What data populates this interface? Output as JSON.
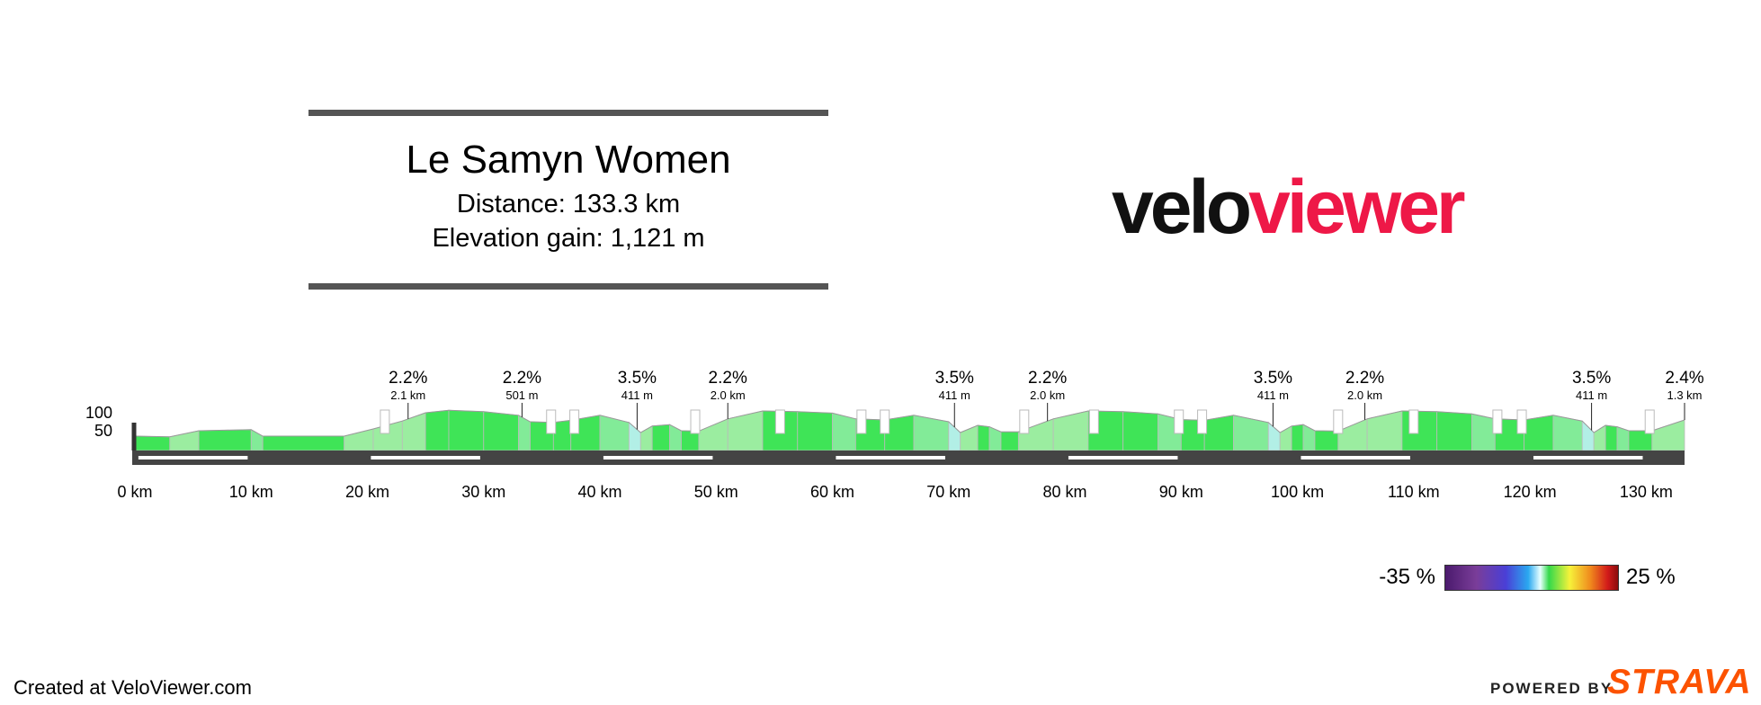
{
  "header": {
    "title": "Le Samyn Women",
    "distance": "Distance: 133.3 km",
    "elevation": "Elevation gain: 1,121 m"
  },
  "logo": {
    "part1": "velo",
    "part2": "viewer"
  },
  "colors": {
    "velo": "#111111",
    "viewer": "#ee1847",
    "strava": "#fc5200",
    "rule": "#555555",
    "road": "#444444"
  },
  "chart_data": {
    "type": "area",
    "x_unit": "km",
    "xlim": [
      0,
      133.3
    ],
    "x_ticks": [
      "0 km",
      "10 km",
      "20 km",
      "30 km",
      "40 km",
      "50 km",
      "60 km",
      "70 km",
      "80 km",
      "90 km",
      "100 km",
      "110 km",
      "120 km",
      "130 km"
    ],
    "y_ticks": [
      100,
      50
    ],
    "ylim": [
      0,
      140
    ],
    "profile": [
      {
        "km": 0,
        "ele": 40
      },
      {
        "km": 3,
        "ele": 38
      },
      {
        "km": 5.5,
        "ele": 55
      },
      {
        "km": 10,
        "ele": 58
      },
      {
        "km": 11,
        "ele": 40
      },
      {
        "km": 18,
        "ele": 40
      },
      {
        "km": 20.5,
        "ele": 60
      },
      {
        "km": 23,
        "ele": 82
      },
      {
        "km": 25,
        "ele": 105
      },
      {
        "km": 27,
        "ele": 112
      },
      {
        "km": 30,
        "ele": 108
      },
      {
        "km": 33,
        "ele": 98
      },
      {
        "km": 34,
        "ele": 80
      },
      {
        "km": 36,
        "ele": 78
      },
      {
        "km": 37.5,
        "ele": 84
      },
      {
        "km": 40,
        "ele": 98
      },
      {
        "km": 42.5,
        "ele": 78
      },
      {
        "km": 43.5,
        "ele": 50
      },
      {
        "km": 44.5,
        "ele": 68
      },
      {
        "km": 46,
        "ele": 72
      },
      {
        "km": 47,
        "ele": 55
      },
      {
        "km": 48.5,
        "ele": 54
      },
      {
        "km": 51,
        "ele": 88
      },
      {
        "km": 54,
        "ele": 110
      },
      {
        "km": 57,
        "ele": 108
      },
      {
        "km": 60,
        "ele": 104
      },
      {
        "km": 62,
        "ele": 88
      },
      {
        "km": 64.5,
        "ele": 85
      },
      {
        "km": 67,
        "ele": 98
      },
      {
        "km": 70,
        "ele": 80
      },
      {
        "km": 71,
        "ele": 50
      },
      {
        "km": 72.5,
        "ele": 70
      },
      {
        "km": 73.5,
        "ele": 66
      },
      {
        "km": 74.5,
        "ele": 52
      },
      {
        "km": 76,
        "ele": 52
      },
      {
        "km": 79,
        "ele": 88
      },
      {
        "km": 82,
        "ele": 110
      },
      {
        "km": 85,
        "ele": 108
      },
      {
        "km": 88,
        "ele": 102
      },
      {
        "km": 90,
        "ele": 86
      },
      {
        "km": 92,
        "ele": 84
      },
      {
        "km": 94.5,
        "ele": 98
      },
      {
        "km": 97.5,
        "ele": 78
      },
      {
        "km": 98.5,
        "ele": 50
      },
      {
        "km": 99.5,
        "ele": 68
      },
      {
        "km": 100.5,
        "ele": 72
      },
      {
        "km": 101.5,
        "ele": 55
      },
      {
        "km": 103.5,
        "ele": 54
      },
      {
        "km": 106,
        "ele": 88
      },
      {
        "km": 109,
        "ele": 110
      },
      {
        "km": 112,
        "ele": 108
      },
      {
        "km": 115,
        "ele": 102
      },
      {
        "km": 117,
        "ele": 88
      },
      {
        "km": 119.5,
        "ele": 85
      },
      {
        "km": 122,
        "ele": 98
      },
      {
        "km": 124.5,
        "ele": 82
      },
      {
        "km": 125.5,
        "ele": 50
      },
      {
        "km": 126.5,
        "ele": 70
      },
      {
        "km": 127.5,
        "ele": 66
      },
      {
        "km": 128.5,
        "ele": 55
      },
      {
        "km": 130.5,
        "ele": 55
      },
      {
        "km": 133.3,
        "ele": 85
      }
    ],
    "climbs": [
      {
        "km": 23.5,
        "grade": "2.2%",
        "length": "2.1 km"
      },
      {
        "km": 33.3,
        "grade": "2.2%",
        "length": "501 m"
      },
      {
        "km": 43.2,
        "grade": "3.5%",
        "length": "411 m"
      },
      {
        "km": 51.0,
        "grade": "2.2%",
        "length": "2.0 km"
      },
      {
        "km": 70.5,
        "grade": "3.5%",
        "length": "411 m"
      },
      {
        "km": 78.5,
        "grade": "2.2%",
        "length": "2.0 km"
      },
      {
        "km": 97.9,
        "grade": "3.5%",
        "length": "411 m"
      },
      {
        "km": 105.8,
        "grade": "2.2%",
        "length": "2.0 km"
      },
      {
        "km": 125.3,
        "grade": "3.5%",
        "length": "411 m"
      },
      {
        "km": 133.3,
        "grade": "2.4%",
        "length": "1.3 km"
      }
    ]
  },
  "legend": {
    "min": "-35 %",
    "max": "25 %"
  },
  "footer": {
    "created": "Created at VeloViewer.com",
    "powered": "POWERED BY",
    "strava": "STRAVA"
  }
}
